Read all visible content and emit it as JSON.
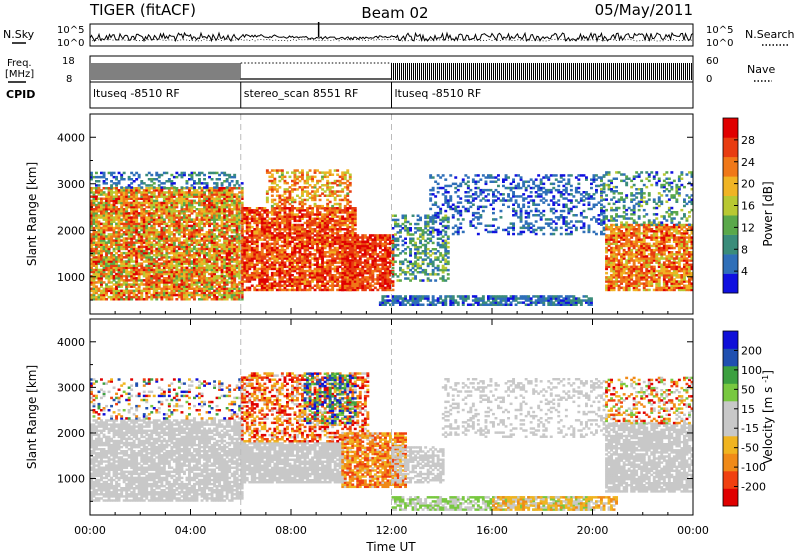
{
  "header": {
    "left_title": "TIGER (fitACF)",
    "center_title": "Beam 02",
    "right_title": "05/May/2011"
  },
  "panels": {
    "nsky_label": "N.Sky",
    "nsearch_label": "N.Search",
    "noise_ticks": [
      "10^5",
      "10^0"
    ],
    "freq_label": "Freq.",
    "freq_unit": "[MHz]",
    "freq_ticks": [
      "18",
      "8"
    ],
    "nave_label": "Nave",
    "nave_ticks": [
      "60",
      "0"
    ],
    "cpid_label": "CPID",
    "cpid_segments": [
      {
        "label": "ltuseq -8510 RF",
        "start_h": 0,
        "end_h": 6
      },
      {
        "label": "stereo_scan 8551 RF",
        "start_h": 6,
        "end_h": 12
      },
      {
        "label": "ltuseq -8510 RF",
        "start_h": 12,
        "end_h": 24
      }
    ]
  },
  "chart_data": [
    {
      "type": "heatmap",
      "name": "power",
      "ylabel": "Slant Range [km]",
      "xlim": [
        0,
        24
      ],
      "ylim": [
        200,
        4500
      ],
      "yticks": [
        1000,
        2000,
        3000,
        4000
      ],
      "colorbar_label": "Power [dB]",
      "colorbar_ticks": [
        4,
        8,
        12,
        16,
        20,
        24,
        28
      ],
      "colorbar_range": [
        0,
        32
      ],
      "colors": [
        "#1010e0",
        "#2f6fb8",
        "#3a8c7a",
        "#5aa84a",
        "#b8c832",
        "#f0b424",
        "#f07818",
        "#e83c10",
        "#e00000"
      ],
      "regions": [
        {
          "t0": 0.0,
          "t1": 6.0,
          "r0": 500,
          "r1": 2900,
          "v0": 12,
          "v1": 30,
          "density": 0.85
        },
        {
          "t0": 0.0,
          "t1": 6.0,
          "r0": 2900,
          "r1": 3250,
          "v0": 2,
          "v1": 12,
          "density": 0.35
        },
        {
          "t0": 6.0,
          "t1": 10.5,
          "r0": 700,
          "r1": 2500,
          "v0": 20,
          "v1": 32,
          "density": 0.8
        },
        {
          "t0": 7.0,
          "t1": 10.3,
          "r0": 2500,
          "r1": 3300,
          "v0": 14,
          "v1": 28,
          "density": 0.45
        },
        {
          "t0": 10.0,
          "t1": 12.0,
          "r0": 700,
          "r1": 1900,
          "v0": 22,
          "v1": 32,
          "density": 0.85
        },
        {
          "t0": 12.0,
          "t1": 14.2,
          "r0": 900,
          "r1": 2300,
          "v0": 3,
          "v1": 16,
          "density": 0.45
        },
        {
          "t0": 11.5,
          "t1": 20.0,
          "r0": 380,
          "r1": 600,
          "v0": 2,
          "v1": 10,
          "density": 0.75
        },
        {
          "t0": 13.5,
          "t1": 20.5,
          "r0": 1900,
          "r1": 3200,
          "v0": 2,
          "v1": 8,
          "density": 0.3
        },
        {
          "t0": 20.5,
          "t1": 24.0,
          "r0": 700,
          "r1": 2100,
          "v0": 16,
          "v1": 30,
          "density": 0.8
        },
        {
          "t0": 20.3,
          "t1": 24.0,
          "r0": 2100,
          "r1": 3250,
          "v0": 2,
          "v1": 16,
          "density": 0.3
        }
      ]
    },
    {
      "type": "heatmap",
      "name": "velocity",
      "ylabel": "Slant Range [km]",
      "xlim": [
        0,
        24
      ],
      "ylim": [
        200,
        4500
      ],
      "yticks": [
        1000,
        2000,
        3000,
        4000
      ],
      "xlabel": "Time UT",
      "xticks": [
        "00:00",
        "04:00",
        "08:00",
        "12:00",
        "16:00",
        "20:00",
        "00:00"
      ],
      "colorbar_label": "Velocity [m s-1]",
      "colorbar_ticks": [
        200,
        100,
        50,
        15,
        -15,
        -50,
        -100,
        -200
      ],
      "colorbar_range": [
        -250,
        250
      ],
      "colors": [
        "#e00000",
        "#f04010",
        "#f08a18",
        "#f0b420",
        "#c8c8c8",
        "#c8c8c8",
        "#78c840",
        "#3ca040",
        "#2050b0",
        "#1010d8"
      ],
      "regions": [
        {
          "t0": 0.0,
          "t1": 6.0,
          "r0": 500,
          "r1": 2300,
          "v0": -15,
          "v1": 15,
          "density": 0.8
        },
        {
          "t0": 0.0,
          "t1": 6.0,
          "r0": 2300,
          "r1": 3200,
          "v0": -250,
          "v1": 250,
          "density": 0.25
        },
        {
          "t0": 6.0,
          "t1": 10.0,
          "r0": 900,
          "r1": 1800,
          "v0": -15,
          "v1": 15,
          "density": 0.85
        },
        {
          "t0": 6.0,
          "t1": 11.0,
          "r0": 1800,
          "r1": 3300,
          "v0": -250,
          "v1": -20,
          "density": 0.55
        },
        {
          "t0": 8.5,
          "t1": 10.5,
          "r0": 2200,
          "r1": 3300,
          "v0": 40,
          "v1": 250,
          "density": 0.4
        },
        {
          "t0": 10.0,
          "t1": 12.5,
          "r0": 800,
          "r1": 2000,
          "v0": -200,
          "v1": -40,
          "density": 0.8
        },
        {
          "t0": 12.0,
          "t1": 14.0,
          "r0": 900,
          "r1": 1700,
          "v0": -15,
          "v1": 15,
          "density": 0.6
        },
        {
          "t0": 12.0,
          "t1": 20.0,
          "r0": 300,
          "r1": 600,
          "v0": 20,
          "v1": 80,
          "density": 0.7
        },
        {
          "t0": 16.0,
          "t1": 21.0,
          "r0": 300,
          "r1": 600,
          "v0": -120,
          "v1": -30,
          "density": 0.6
        },
        {
          "t0": 14.0,
          "t1": 20.5,
          "r0": 1900,
          "r1": 3200,
          "v0": -15,
          "v1": 15,
          "density": 0.25
        },
        {
          "t0": 20.5,
          "t1": 24.0,
          "r0": 700,
          "r1": 2200,
          "v0": -40,
          "v1": 40,
          "density": 0.8
        },
        {
          "t0": 20.5,
          "t1": 24.0,
          "r0": 2200,
          "r1": 3200,
          "v0": -250,
          "v1": 100,
          "density": 0.35
        }
      ]
    }
  ]
}
